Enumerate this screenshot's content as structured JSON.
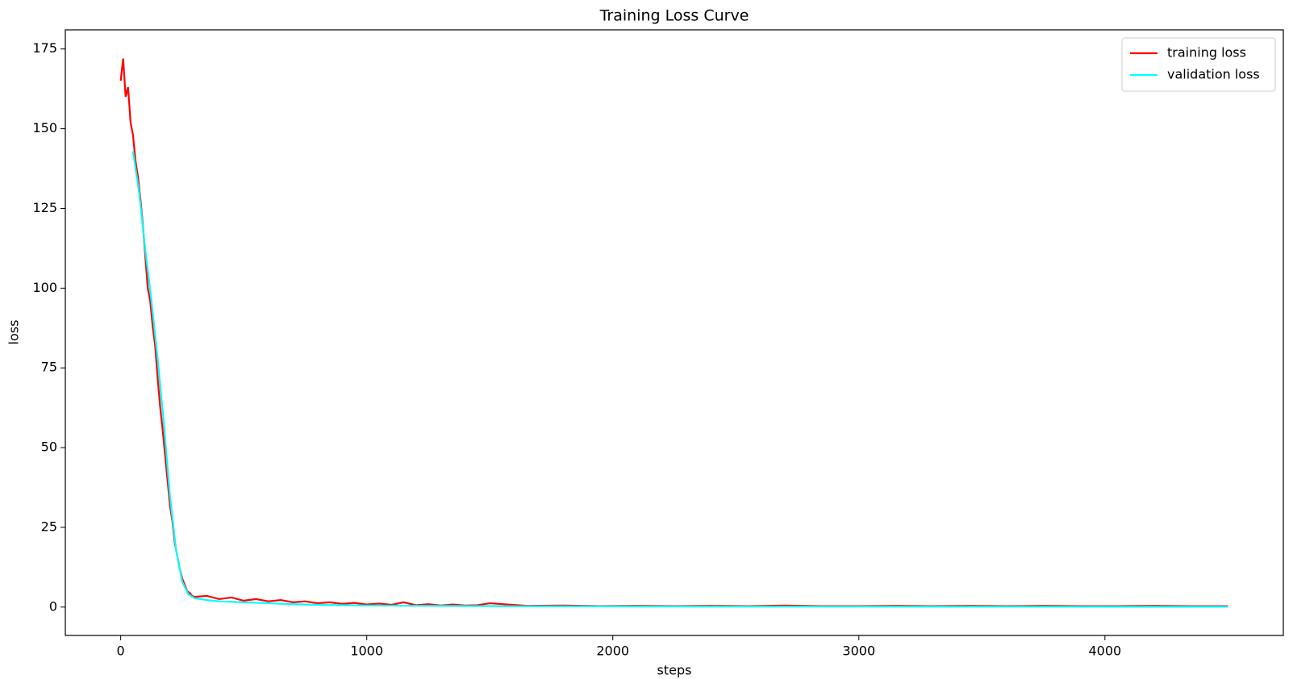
{
  "chart_data": {
    "type": "line",
    "title": "Training Loss Curve",
    "x_label": "steps",
    "y_label": "loss",
    "xlim": [
      -225,
      4725
    ],
    "ylim": [
      -8.9,
      181
    ],
    "xticks": [
      0,
      1000,
      2000,
      3000,
      4000
    ],
    "yticks": [
      0,
      25,
      50,
      75,
      100,
      125,
      150,
      175
    ],
    "legend": "upper right",
    "grid": false,
    "series": [
      {
        "name": "training loss",
        "color": "#ff0000",
        "x": [
          0,
          10,
          20,
          30,
          40,
          50,
          60,
          70,
          80,
          90,
          100,
          110,
          120,
          130,
          140,
          150,
          160,
          170,
          180,
          190,
          200,
          210,
          220,
          230,
          240,
          250,
          260,
          270,
          280,
          290,
          300,
          350,
          400,
          450,
          500,
          550,
          600,
          650,
          700,
          750,
          800,
          850,
          900,
          950,
          1000,
          1050,
          1100,
          1150,
          1200,
          1250,
          1300,
          1350,
          1400,
          1450,
          1500,
          1650,
          1800,
          1950,
          2100,
          2250,
          2400,
          2550,
          2700,
          2850,
          3000,
          3150,
          3300,
          3450,
          3600,
          3750,
          3900,
          4050,
          4200,
          4350,
          4500
        ],
        "values": [
          165,
          172,
          160,
          163,
          152,
          148,
          140,
          135,
          128,
          120,
          110,
          100,
          96,
          88,
          82,
          72,
          63,
          56,
          48,
          40,
          32,
          27,
          20,
          16,
          12,
          9,
          7,
          5,
          4.5,
          3.5,
          3.2,
          3.5,
          2.5,
          3,
          2,
          2.5,
          1.8,
          2.2,
          1.5,
          1.8,
          1.2,
          1.5,
          1,
          1.3,
          0.8,
          1.1,
          0.7,
          1.5,
          0.6,
          0.9,
          0.5,
          0.8,
          0.5,
          0.6,
          1.2,
          0.4,
          0.5,
          0.3,
          0.4,
          0.3,
          0.4,
          0.3,
          0.5,
          0.3,
          0.3,
          0.4,
          0.3,
          0.4,
          0.3,
          0.4,
          0.3,
          0.3,
          0.4,
          0.3,
          0.3
        ]
      },
      {
        "name": "validation loss",
        "color": "#00ffff",
        "x": [
          50,
          75,
          100,
          125,
          150,
          175,
          200,
          225,
          250,
          275,
          300,
          350,
          400,
          500,
          600,
          700,
          800,
          1000,
          1500,
          2000,
          3000,
          4500
        ],
        "values": [
          143,
          130,
          112,
          96,
          78,
          58,
          35,
          18,
          8,
          4,
          2.8,
          2.2,
          1.8,
          1.5,
          1.2,
          0.9,
          0.7,
          0.5,
          0.3,
          0.2,
          0.15,
          0.1
        ]
      }
    ]
  }
}
